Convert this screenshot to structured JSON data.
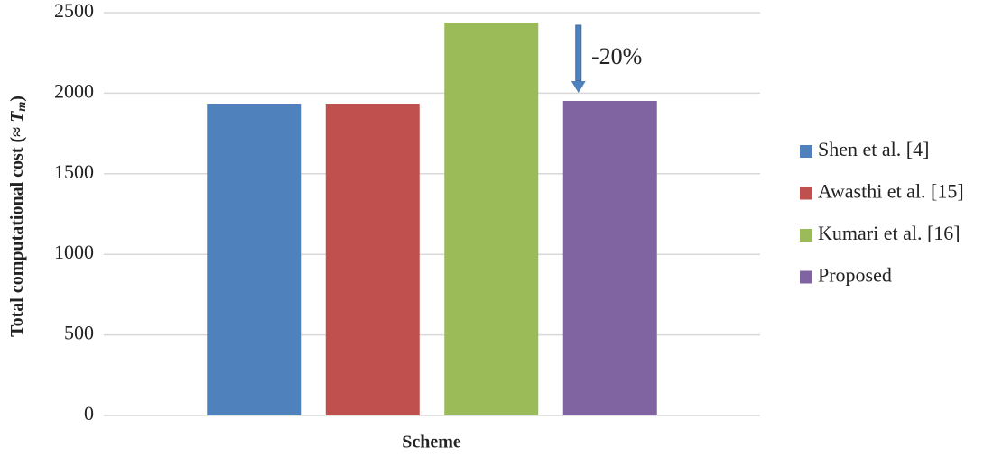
{
  "chart_data": {
    "type": "bar",
    "ylabel": [
      "Total computational cost (≈ ",
      "T",
      "m",
      ")"
    ],
    "xlabel": "Scheme",
    "categories": [
      "Shen et al. [4]",
      "Awasthi et al. [15]",
      "Kumari et al. [16]",
      "Proposed"
    ],
    "values": [
      1935,
      1935,
      2438,
      1952
    ],
    "colors": [
      "#4f81bd",
      "#c0504d",
      "#9bbb59",
      "#8064a2"
    ],
    "ylim": [
      0,
      2500
    ],
    "yticks": [
      0,
      500,
      1000,
      1500,
      2000,
      2500
    ],
    "grid": true,
    "annotation": "-20%",
    "legend": "right"
  }
}
